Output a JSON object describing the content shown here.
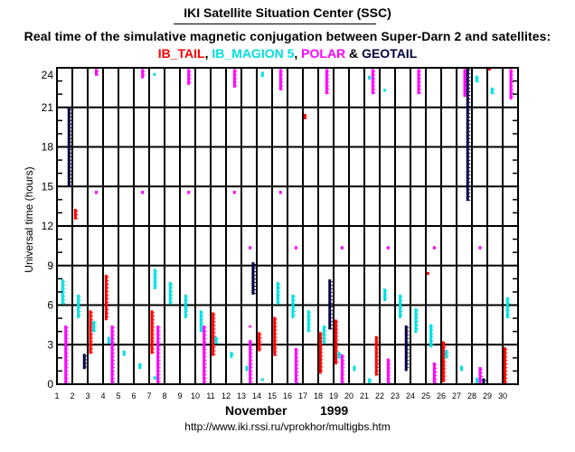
{
  "header": {
    "title": "IKI Satellite Situation Center (SSC)",
    "subtitle": "Real time of the simulative magnetic conjugation between Super-Darn 2 and satellites:",
    "legend": [
      {
        "label": "IB_TAIL",
        "color": "#ff0000",
        "sep": ", "
      },
      {
        "label": "IB_MAGION 5",
        "color": "#00e0e0",
        "sep": ", "
      },
      {
        "label": "POLAR",
        "color": "#ff00ff",
        "sep": " & "
      },
      {
        "label": "GEOTAIL",
        "color": "#000040",
        "sep": ""
      }
    ]
  },
  "footer": {
    "month": "November",
    "year": "1999",
    "url": "http://www.iki.rssi.ru/vprokhor/multigbs.htm"
  },
  "chart_data": {
    "type": "bar",
    "title": "Real time of the simulative magnetic conjugation between Super-Darn 2 and satellites",
    "xlabel": "November 1999",
    "ylabel": "Universal time  (hours)",
    "xlim": [
      1,
      31
    ],
    "ylim": [
      0,
      24
    ],
    "x_ticks": [
      "1",
      "2",
      "3",
      "4",
      "5",
      "6",
      "7",
      "8",
      "9",
      "10",
      "11",
      "12",
      "13",
      "14",
      "15",
      "16",
      "17",
      "18",
      "19",
      "20",
      "21",
      "22",
      "23",
      "24",
      "25",
      "26",
      "27",
      "28",
      "29",
      "30"
    ],
    "y_ticks": [
      "0",
      "3",
      "6",
      "9",
      "12",
      "15",
      "18",
      "21",
      "24"
    ],
    "y_minor_step": 1,
    "grid": true,
    "legend": "top",
    "series_colors": {
      "IB_TAIL": "#ff0000",
      "IB_MAGION 5": "#00e0e0",
      "POLAR": "#ff00ff",
      "GEOTAIL": "#000040"
    },
    "intervals": [
      {
        "sat": "GEOTAIL",
        "day": 1.78,
        "start": 15.0,
        "end": 21.0
      },
      {
        "sat": "IB_TAIL",
        "day": 2.2,
        "start": 12.5,
        "end": 13.3
      },
      {
        "sat": "POLAR",
        "day": 3.56,
        "start": 23.4,
        "end": 23.9
      },
      {
        "sat": "POLAR",
        "day": 3.56,
        "start": 14.5,
        "end": 14.6
      },
      {
        "sat": "POLAR",
        "day": 6.57,
        "start": 23.2,
        "end": 23.9
      },
      {
        "sat": "POLAR",
        "day": 6.57,
        "start": 14.5,
        "end": 14.6
      },
      {
        "sat": "IB_MAGION 5",
        "day": 7.35,
        "start": 23.4,
        "end": 23.6
      },
      {
        "sat": "POLAR",
        "day": 9.57,
        "start": 22.7,
        "end": 23.9
      },
      {
        "sat": "POLAR",
        "day": 9.57,
        "start": 14.5,
        "end": 14.6
      },
      {
        "sat": "POLAR",
        "day": 12.55,
        "start": 22.5,
        "end": 23.9
      },
      {
        "sat": "POLAR",
        "day": 12.55,
        "start": 14.5,
        "end": 14.6
      },
      {
        "sat": "IB_MAGION 5",
        "day": 14.37,
        "start": 23.3,
        "end": 23.7
      },
      {
        "sat": "POLAR",
        "day": 15.55,
        "start": 22.3,
        "end": 23.9
      },
      {
        "sat": "POLAR",
        "day": 15.55,
        "start": 14.5,
        "end": 14.6
      },
      {
        "sat": "IB_TAIL",
        "day": 17.14,
        "start": 20.1,
        "end": 20.5
      },
      {
        "sat": "POLAR",
        "day": 18.55,
        "start": 22.0,
        "end": 23.9
      },
      {
        "sat": "POLAR",
        "day": 21.55,
        "start": 22.0,
        "end": 23.9
      },
      {
        "sat": "IB_MAGION 5",
        "day": 21.33,
        "start": 23.1,
        "end": 23.4
      },
      {
        "sat": "IB_MAGION 5",
        "day": 22.33,
        "start": 22.2,
        "end": 22.4
      },
      {
        "sat": "POLAR",
        "day": 24.53,
        "start": 22.0,
        "end": 23.9
      },
      {
        "sat": "POLAR",
        "day": 27.53,
        "start": 21.8,
        "end": 23.9
      },
      {
        "sat": "GEOTAIL",
        "day": 27.72,
        "start": 13.9,
        "end": 24.0
      },
      {
        "sat": "IB_MAGION 5",
        "day": 28.31,
        "start": 22.9,
        "end": 23.4
      },
      {
        "sat": "IB_TAIL",
        "day": 29.14,
        "start": 23.8,
        "end": 24.0
      },
      {
        "sat": "IB_MAGION 5",
        "day": 29.31,
        "start": 22.0,
        "end": 22.5
      },
      {
        "sat": "POLAR",
        "day": 30.53,
        "start": 21.6,
        "end": 23.9
      },
      {
        "sat": "POLAR",
        "day": 13.57,
        "start": 10.3,
        "end": 10.4
      },
      {
        "sat": "POLAR",
        "day": 16.55,
        "start": 10.3,
        "end": 10.4
      },
      {
        "sat": "POLAR",
        "day": 19.55,
        "start": 10.3,
        "end": 10.4
      },
      {
        "sat": "POLAR",
        "day": 22.55,
        "start": 10.3,
        "end": 10.4
      },
      {
        "sat": "POLAR",
        "day": 25.55,
        "start": 10.3,
        "end": 10.4
      },
      {
        "sat": "POLAR",
        "day": 28.53,
        "start": 10.3,
        "end": 10.4
      },
      {
        "sat": "IB_TAIL",
        "day": 25.14,
        "start": 8.3,
        "end": 8.5
      },
      {
        "sat": "IB_MAGION 5",
        "day": 1.37,
        "start": 6.05,
        "end": 7.95
      },
      {
        "sat": "POLAR",
        "day": 1.57,
        "start": 0.0,
        "end": 4.45
      },
      {
        "sat": "IB_MAGION 5",
        "day": 2.39,
        "start": 5.0,
        "end": 6.8
      },
      {
        "sat": "GEOTAIL",
        "day": 2.78,
        "start": 1.15,
        "end": 2.3
      },
      {
        "sat": "IB_TAIL",
        "day": 3.18,
        "start": 2.3,
        "end": 5.6
      },
      {
        "sat": "IB_MAGION 5",
        "day": 3.39,
        "start": 3.95,
        "end": 4.8
      },
      {
        "sat": "IB_TAIL",
        "day": 4.2,
        "start": 4.85,
        "end": 8.3
      },
      {
        "sat": "IB_MAGION 5",
        "day": 4.37,
        "start": 3.05,
        "end": 3.6
      },
      {
        "sat": "POLAR",
        "day": 4.59,
        "start": 0.0,
        "end": 4.45
      },
      {
        "sat": "IB_MAGION 5",
        "day": 5.37,
        "start": 2.15,
        "end": 2.55
      },
      {
        "sat": "IB_MAGION 5",
        "day": 6.39,
        "start": 1.15,
        "end": 1.6
      },
      {
        "sat": "IB_MAGION 5",
        "day": 7.37,
        "start": 7.2,
        "end": 8.75
      },
      {
        "sat": "IB_TAIL",
        "day": 7.18,
        "start": 2.3,
        "end": 5.6
      },
      {
        "sat": "POLAR",
        "day": 7.57,
        "start": 0.0,
        "end": 4.45
      },
      {
        "sat": "IB_MAGION 5",
        "day": 7.37,
        "start": 0.35,
        "end": 0.6
      },
      {
        "sat": "IB_MAGION 5",
        "day": 8.37,
        "start": 6.05,
        "end": 7.75
      },
      {
        "sat": "IB_MAGION 5",
        "day": 9.37,
        "start": 5.0,
        "end": 6.8
      },
      {
        "sat": "IB_MAGION 5",
        "day": 10.37,
        "start": 3.95,
        "end": 5.6
      },
      {
        "sat": "POLAR",
        "day": 10.57,
        "start": 0.0,
        "end": 4.45
      },
      {
        "sat": "IB_TAIL",
        "day": 11.16,
        "start": 2.15,
        "end": 5.45
      },
      {
        "sat": "IB_MAGION 5",
        "day": 11.35,
        "start": 3.05,
        "end": 3.6
      },
      {
        "sat": "IB_MAGION 5",
        "day": 12.35,
        "start": 2.0,
        "end": 2.45
      },
      {
        "sat": "IB_MAGION 5",
        "day": 13.35,
        "start": 1.0,
        "end": 1.4
      },
      {
        "sat": "POLAR",
        "day": 13.57,
        "start": 0.0,
        "end": 3.35
      },
      {
        "sat": "POLAR",
        "day": 13.57,
        "start": 4.3,
        "end": 4.45
      },
      {
        "sat": "GEOTAIL",
        "day": 13.76,
        "start": 6.8,
        "end": 9.25
      },
      {
        "sat": "IB_TAIL",
        "day": 14.16,
        "start": 2.5,
        "end": 3.95
      },
      {
        "sat": "IB_MAGION 5",
        "day": 14.37,
        "start": 0.25,
        "end": 0.45
      },
      {
        "sat": "IB_TAIL",
        "day": 15.16,
        "start": 2.15,
        "end": 5.1
      },
      {
        "sat": "IB_MAGION 5",
        "day": 15.37,
        "start": 6.05,
        "end": 7.75
      },
      {
        "sat": "IB_MAGION 5",
        "day": 16.35,
        "start": 5.0,
        "end": 6.8
      },
      {
        "sat": "POLAR",
        "day": 16.55,
        "start": 0.0,
        "end": 2.75
      },
      {
        "sat": "IB_MAGION 5",
        "day": 17.37,
        "start": 3.95,
        "end": 5.6
      },
      {
        "sat": "IB_TAIL",
        "day": 18.14,
        "start": 0.8,
        "end": 3.95
      },
      {
        "sat": "IB_MAGION 5",
        "day": 18.37,
        "start": 3.1,
        "end": 4.45
      },
      {
        "sat": "GEOTAIL",
        "day": 18.75,
        "start": 4.15,
        "end": 7.95
      },
      {
        "sat": "IB_TAIL",
        "day": 19.14,
        "start": 1.5,
        "end": 4.9
      },
      {
        "sat": "IB_MAGION 5",
        "day": 19.35,
        "start": 1.95,
        "end": 2.45
      },
      {
        "sat": "POLAR",
        "day": 19.55,
        "start": 0.0,
        "end": 2.25
      },
      {
        "sat": "IB_MAGION 5",
        "day": 20.35,
        "start": 1.0,
        "end": 1.4
      },
      {
        "sat": "IB_MAGION 5",
        "day": 21.33,
        "start": 0.0,
        "end": 0.45
      },
      {
        "sat": "IB_TAIL",
        "day": 21.78,
        "start": 0.65,
        "end": 3.65
      },
      {
        "sat": "IB_MAGION 5",
        "day": 22.33,
        "start": 6.3,
        "end": 7.25
      },
      {
        "sat": "POLAR",
        "day": 22.55,
        "start": 0.0,
        "end": 1.95
      },
      {
        "sat": "IB_MAGION 5",
        "day": 23.33,
        "start": 5.0,
        "end": 6.8
      },
      {
        "sat": "GEOTAIL",
        "day": 23.72,
        "start": 1.0,
        "end": 4.45
      },
      {
        "sat": "IB_MAGION 5",
        "day": 24.35,
        "start": 3.9,
        "end": 5.75
      },
      {
        "sat": "IB_MAGION 5",
        "day": 25.33,
        "start": 2.8,
        "end": 4.55
      },
      {
        "sat": "POLAR",
        "day": 25.55,
        "start": 0.0,
        "end": 1.65
      },
      {
        "sat": "IB_TAIL",
        "day": 26.14,
        "start": 0.15,
        "end": 3.25
      },
      {
        "sat": "IB_MAGION 5",
        "day": 26.33,
        "start": 1.95,
        "end": 2.6
      },
      {
        "sat": "IB_MAGION 5",
        "day": 27.33,
        "start": 1.0,
        "end": 1.4
      },
      {
        "sat": "IB_MAGION 5",
        "day": 28.33,
        "start": 0.0,
        "end": 0.5
      },
      {
        "sat": "POLAR",
        "day": 28.53,
        "start": 0.0,
        "end": 1.3
      },
      {
        "sat": "GEOTAIL",
        "day": 28.76,
        "start": 0.0,
        "end": 0.45
      },
      {
        "sat": "IB_TAIL",
        "day": 30.14,
        "start": 0.0,
        "end": 2.8
      },
      {
        "sat": "IB_MAGION 5",
        "day": 30.31,
        "start": 5.0,
        "end": 6.6
      }
    ]
  }
}
